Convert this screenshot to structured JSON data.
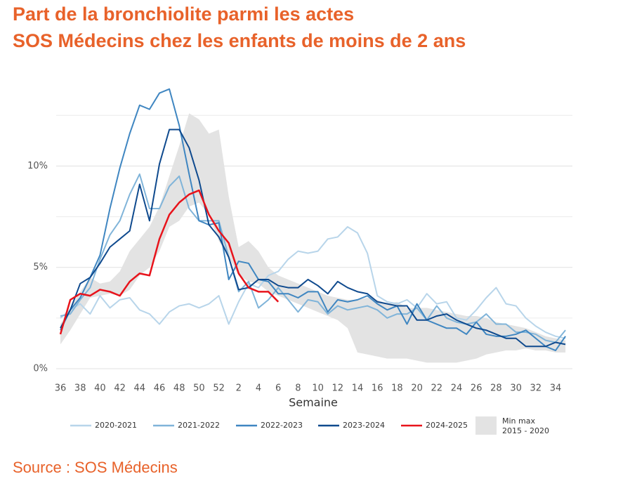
{
  "chart_data": {
    "type": "line",
    "title": [
      "Part de la bronchiolite parmi les actes",
      "SOS Médecins chez les enfants de moins de 2 ans"
    ],
    "x_label": "Semaine",
    "source": "Source : SOS Médecins",
    "categories": [
      "36",
      null,
      "38",
      null,
      "40",
      null,
      "42",
      null,
      "44",
      null,
      "46",
      null,
      "48",
      null,
      "50",
      null,
      "52",
      null,
      "2",
      null,
      "4",
      null,
      "6",
      null,
      "8",
      null,
      "10",
      null,
      "12",
      null,
      "14",
      null,
      "16",
      null,
      "18",
      null,
      "20",
      null,
      "22",
      null,
      "24",
      null,
      "26",
      null,
      "28",
      null,
      "30",
      null,
      "32",
      null,
      "34",
      null
    ],
    "ylim": [
      0,
      14
    ],
    "yticks": [
      {
        "value": 0,
        "label": "0%"
      },
      {
        "value": 5,
        "label": "5%"
      },
      {
        "value": 10,
        "label": "10%"
      }
    ],
    "minor_yticks": [
      2.5,
      7.5,
      12.5
    ],
    "grid": true,
    "legend": "bottom",
    "band": {
      "name": [
        "Min max",
        "2015 - 2020"
      ],
      "color": "#e3e3e3",
      "max": [
        2.2,
        3.0,
        3.8,
        4.5,
        4.2,
        4.3,
        4.8,
        5.8,
        6.4,
        7.0,
        8.0,
        9.5,
        11.0,
        12.6,
        12.3,
        11.6,
        11.8,
        8.5,
        6.0,
        6.3,
        5.8,
        5.0,
        4.6,
        4.4,
        4.2,
        4.0,
        3.8,
        3.6,
        3.5,
        3.4,
        3.4,
        3.5,
        3.4,
        3.2,
        3.3,
        3.0,
        3.0,
        3.0,
        2.9,
        2.8,
        2.7,
        2.6,
        2.6,
        2.5,
        2.3,
        2.2,
        2.1,
        2.0,
        1.8,
        1.6,
        1.5,
        1.4
      ],
      "min": [
        1.2,
        1.9,
        2.7,
        3.5,
        3.6,
        3.7,
        3.6,
        3.9,
        4.6,
        5.0,
        5.8,
        7.0,
        7.3,
        8.0,
        8.2,
        7.6,
        6.3,
        5.5,
        4.6,
        4.3,
        4.2,
        3.8,
        3.6,
        3.4,
        3.2,
        3.0,
        2.8,
        2.6,
        2.4,
        2.0,
        0.8,
        0.7,
        0.6,
        0.5,
        0.5,
        0.5,
        0.4,
        0.3,
        0.3,
        0.3,
        0.3,
        0.4,
        0.5,
        0.7,
        0.8,
        0.9,
        0.9,
        1.0,
        0.9,
        0.9,
        0.8,
        0.8
      ]
    },
    "series": [
      {
        "name": "2020-2021",
        "color": "#b8d5ea",
        "values": [
          2.5,
          2.9,
          3.2,
          2.7,
          3.6,
          3.0,
          3.4,
          3.5,
          2.9,
          2.7,
          2.2,
          2.8,
          3.1,
          3.2,
          3.0,
          3.2,
          3.6,
          2.2,
          3.3,
          4.2,
          4.0,
          4.6,
          4.8,
          5.4,
          5.8,
          5.7,
          5.8,
          6.4,
          6.5,
          7.0,
          6.7,
          5.7,
          3.6,
          3.3,
          3.2,
          3.4,
          3.0,
          3.7,
          3.2,
          3.3,
          2.5,
          2.4,
          2.9,
          3.5,
          4.0,
          3.2,
          3.1,
          2.5,
          2.1,
          1.8,
          1.6,
          1.5
        ]
      },
      {
        "name": "2021-2022",
        "color": "#80b4d9",
        "values": [
          2.6,
          2.7,
          3.4,
          4.0,
          5.4,
          6.6,
          7.3,
          8.6,
          9.6,
          7.9,
          7.9,
          9.0,
          9.5,
          7.9,
          7.3,
          7.3,
          7.3,
          5.5,
          3.8,
          4.3,
          3.0,
          3.4,
          4.0,
          3.4,
          2.8,
          3.4,
          3.3,
          2.7,
          3.1,
          2.9,
          3.0,
          3.1,
          2.9,
          2.5,
          2.7,
          2.7,
          3.0,
          2.4,
          3.1,
          2.5,
          2.3,
          2.2,
          2.3,
          2.7,
          2.2,
          2.2,
          1.8,
          1.8,
          1.7,
          1.4,
          1.3,
          1.9
        ]
      },
      {
        "name": "2022-2023",
        "color": "#3f86c1",
        "values": [
          1.9,
          2.9,
          3.5,
          4.5,
          5.6,
          7.9,
          9.9,
          11.6,
          13.0,
          12.8,
          13.6,
          13.8,
          12.0,
          9.6,
          7.3,
          7.1,
          7.2,
          4.4,
          5.3,
          5.2,
          4.4,
          4.3,
          3.7,
          3.7,
          3.5,
          3.8,
          3.8,
          2.8,
          3.4,
          3.3,
          3.4,
          3.6,
          3.2,
          2.9,
          3.1,
          2.2,
          3.2,
          2.4,
          2.2,
          2.0,
          2.0,
          1.7,
          2.3,
          1.7,
          1.6,
          1.6,
          1.7,
          1.9,
          1.5,
          1.1,
          0.9,
          1.6
        ]
      },
      {
        "name": "2023-2024",
        "color": "#0f4a8e",
        "values": [
          2.0,
          2.9,
          4.2,
          4.5,
          5.2,
          6.0,
          6.4,
          6.8,
          9.1,
          7.3,
          10.1,
          11.8,
          11.8,
          10.9,
          9.3,
          7.1,
          6.5,
          5.5,
          3.9,
          4.0,
          4.4,
          4.4,
          4.1,
          4.0,
          4.0,
          4.4,
          4.1,
          3.7,
          4.3,
          4.0,
          3.8,
          3.7,
          3.3,
          3.2,
          3.1,
          3.1,
          2.4,
          2.4,
          2.6,
          2.7,
          2.4,
          2.2,
          2.0,
          1.9,
          1.7,
          1.5,
          1.5,
          1.1,
          1.1,
          1.1,
          1.3,
          1.2
        ]
      },
      {
        "name": "2024-2025",
        "color": "#e8131b",
        "values": [
          1.7,
          3.4,
          3.7,
          3.6,
          3.9,
          3.8,
          3.6,
          4.3,
          4.7,
          4.6,
          6.4,
          7.6,
          8.2,
          8.6,
          8.8,
          7.6,
          6.8,
          6.2,
          4.7,
          4.0,
          3.8,
          3.8,
          3.3,
          null,
          null,
          null,
          null,
          null,
          null,
          null,
          null,
          null,
          null,
          null,
          null,
          null,
          null,
          null,
          null,
          null,
          null,
          null,
          null,
          null,
          null,
          null,
          null,
          null,
          null,
          null,
          null,
          null
        ]
      }
    ]
  }
}
